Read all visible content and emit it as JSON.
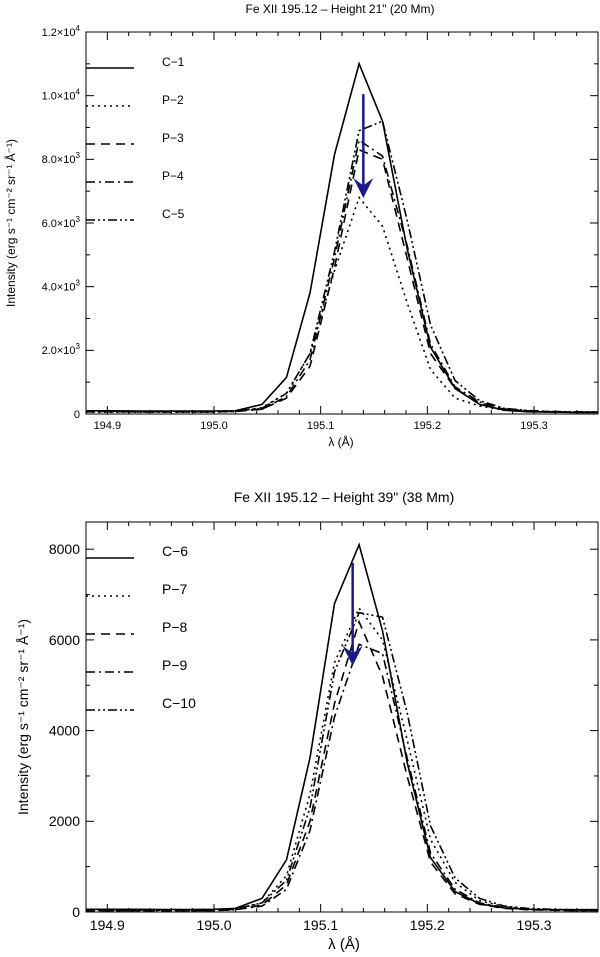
{
  "chart_data": [
    {
      "type": "line",
      "title": "Fe XII 195.12 – Height 21\" (20 Mm)",
      "xlabel": "λ (Å)",
      "ylabel": "Intensity (erg s⁻¹ cm⁻² sr⁻¹ Å⁻¹)",
      "xlim": [
        194.88,
        195.36
      ],
      "ylim": [
        0,
        12000
      ],
      "xticks": [
        194.9,
        195.0,
        195.1,
        195.2,
        195.3
      ],
      "xtick_labels": [
        "194.9",
        "195.0",
        "195.1",
        "195.2",
        "195.3"
      ],
      "yticks": [
        0,
        2000,
        4000,
        6000,
        8000,
        10000,
        12000
      ],
      "ytick_labels": [
        {
          "mantissa": "0",
          "exp": ""
        },
        {
          "mantissa": "2.0×10",
          "exp": "3"
        },
        {
          "mantissa": "4.0×10",
          "exp": "3"
        },
        {
          "mantissa": "6.0×10",
          "exp": "3"
        },
        {
          "mantissa": "8.0×10",
          "exp": "3"
        },
        {
          "mantissa": "1.0×10",
          "exp": "4"
        },
        {
          "mantissa": "1.2×10",
          "exp": "4"
        }
      ],
      "arrow": {
        "x": 195.14,
        "y_from": 10050,
        "y_to": 7100,
        "color": "#1a1a8c"
      },
      "series": [
        {
          "name": "C−1",
          "dash": "solid",
          "x": [
            194.88,
            194.9,
            194.93,
            194.95,
            194.98,
            195.0,
            195.02,
            195.045,
            195.068,
            195.09,
            195.113,
            195.136,
            195.158,
            195.181,
            195.203,
            195.226,
            195.249,
            195.272,
            195.294,
            195.317,
            195.34,
            195.36
          ],
          "y": [
            100,
            100,
            95,
            90,
            90,
            95,
            100,
            300,
            1150,
            3800,
            8150,
            11000,
            9200,
            5200,
            2100,
            800,
            300,
            120,
            70,
            60,
            50,
            50
          ]
        },
        {
          "name": "P−2",
          "dash": "dot",
          "x": [
            194.88,
            194.9,
            194.93,
            194.95,
            194.98,
            195.0,
            195.02,
            195.045,
            195.068,
            195.09,
            195.113,
            195.136,
            195.158,
            195.181,
            195.203,
            195.226,
            195.249,
            195.272,
            195.294,
            195.317,
            195.34,
            195.36
          ],
          "y": [
            60,
            60,
            60,
            60,
            60,
            60,
            80,
            200,
            650,
            1900,
            4500,
            6800,
            5900,
            3500,
            1400,
            500,
            250,
            120,
            80,
            60,
            50,
            50
          ]
        },
        {
          "name": "P−3",
          "dash": "dash",
          "x": [
            194.88,
            194.9,
            194.93,
            194.95,
            194.98,
            195.0,
            195.02,
            195.045,
            195.068,
            195.09,
            195.113,
            195.136,
            195.158,
            195.181,
            195.203,
            195.226,
            195.249,
            195.272,
            195.294,
            195.317,
            195.34,
            195.36
          ],
          "y": [
            80,
            80,
            70,
            70,
            70,
            70,
            90,
            150,
            500,
            1500,
            4600,
            8300,
            8000,
            4900,
            1900,
            800,
            350,
            150,
            90,
            70,
            60,
            60
          ]
        },
        {
          "name": "P−4",
          "dash": "dashdot",
          "x": [
            194.88,
            194.9,
            194.93,
            194.95,
            194.98,
            195.0,
            195.02,
            195.045,
            195.068,
            195.09,
            195.113,
            195.136,
            195.158,
            195.181,
            195.203,
            195.226,
            195.249,
            195.272,
            195.294,
            195.317,
            195.34,
            195.36
          ],
          "y": [
            70,
            70,
            65,
            65,
            65,
            65,
            80,
            150,
            550,
            1700,
            4900,
            8600,
            8100,
            5300,
            2200,
            850,
            380,
            160,
            100,
            70,
            60,
            60
          ]
        },
        {
          "name": "C−5",
          "dash": "dashdotdot",
          "x": [
            194.88,
            194.9,
            194.93,
            194.95,
            194.98,
            195.0,
            195.02,
            195.045,
            195.068,
            195.09,
            195.113,
            195.136,
            195.158,
            195.181,
            195.203,
            195.226,
            195.249,
            195.272,
            195.294,
            195.317,
            195.34,
            195.36
          ],
          "y": [
            90,
            90,
            80,
            80,
            80,
            80,
            100,
            180,
            650,
            1900,
            5100,
            8900,
            9200,
            6100,
            2800,
            1050,
            420,
            180,
            110,
            80,
            70,
            60
          ]
        }
      ]
    },
    {
      "type": "line",
      "title": "Fe XII 195.12 – Height 39\" (38 Mm)",
      "xlabel": "λ (Å)",
      "ylabel": "Intensity (erg s⁻¹ cm⁻² sr⁻¹ Å⁻¹)",
      "xlim": [
        194.88,
        195.36
      ],
      "ylim": [
        0,
        8600
      ],
      "xticks": [
        194.9,
        195.0,
        195.1,
        195.2,
        195.3
      ],
      "xtick_labels": [
        "194.9",
        "195.0",
        "195.1",
        "195.2",
        "195.3"
      ],
      "yticks": [
        0,
        2000,
        4000,
        6000,
        8000
      ],
      "ytick_labels": [
        {
          "mantissa": "0",
          "exp": ""
        },
        {
          "mantissa": "2000",
          "exp": ""
        },
        {
          "mantissa": "4000",
          "exp": ""
        },
        {
          "mantissa": "6000",
          "exp": ""
        },
        {
          "mantissa": "8000",
          "exp": ""
        }
      ],
      "arrow": {
        "x": 195.13,
        "y_from": 7700,
        "y_to": 5650,
        "color": "#1a1a8c"
      },
      "series": [
        {
          "name": "C−6",
          "dash": "solid",
          "x": [
            194.88,
            194.9,
            194.93,
            194.95,
            194.98,
            195.0,
            195.02,
            195.045,
            195.068,
            195.09,
            195.113,
            195.136,
            195.158,
            195.181,
            195.203,
            195.226,
            195.249,
            195.272,
            195.294,
            195.317,
            195.34,
            195.36
          ],
          "y": [
            60,
            60,
            60,
            55,
            55,
            60,
            80,
            300,
            1150,
            3400,
            6800,
            8100,
            6200,
            3300,
            1200,
            450,
            180,
            90,
            60,
            50,
            50,
            50
          ]
        },
        {
          "name": "P−7",
          "dash": "dot",
          "x": [
            194.88,
            194.9,
            194.93,
            194.95,
            194.98,
            195.0,
            195.02,
            195.045,
            195.068,
            195.09,
            195.113,
            195.136,
            195.158,
            195.181,
            195.203,
            195.226,
            195.249,
            195.272,
            195.294,
            195.317,
            195.34,
            195.36
          ],
          "y": [
            40,
            40,
            40,
            40,
            40,
            40,
            60,
            200,
            800,
            2600,
            5500,
            6700,
            6000,
            3800,
            1600,
            650,
            250,
            120,
            70,
            50,
            40,
            40
          ]
        },
        {
          "name": "P−8",
          "dash": "dash",
          "x": [
            194.88,
            194.9,
            194.93,
            194.95,
            194.98,
            195.0,
            195.02,
            195.045,
            195.068,
            195.09,
            195.113,
            195.136,
            195.158,
            195.181,
            195.203,
            195.226,
            195.249,
            195.272,
            195.294,
            195.317,
            195.34,
            195.36
          ],
          "y": [
            30,
            30,
            30,
            30,
            30,
            30,
            50,
            150,
            600,
            2000,
            4600,
            6400,
            5200,
            3000,
            1100,
            400,
            170,
            80,
            50,
            40,
            30,
            30
          ]
        },
        {
          "name": "P−9",
          "dash": "dashdot",
          "x": [
            194.88,
            194.9,
            194.93,
            194.95,
            194.98,
            195.0,
            195.02,
            195.045,
            195.068,
            195.09,
            195.113,
            195.136,
            195.158,
            195.181,
            195.203,
            195.226,
            195.249,
            195.272,
            195.294,
            195.317,
            195.34,
            195.36
          ],
          "y": [
            30,
            30,
            30,
            30,
            30,
            30,
            50,
            130,
            500,
            1800,
            4300,
            5900,
            5700,
            3400,
            1300,
            500,
            200,
            100,
            60,
            40,
            30,
            30
          ]
        },
        {
          "name": "C−10",
          "dash": "dashdotdot",
          "x": [
            194.88,
            194.9,
            194.93,
            194.95,
            194.98,
            195.0,
            195.02,
            195.045,
            195.068,
            195.09,
            195.113,
            195.136,
            195.158,
            195.181,
            195.203,
            195.226,
            195.249,
            195.272,
            195.294,
            195.317,
            195.34,
            195.36
          ],
          "y": [
            50,
            50,
            50,
            50,
            50,
            50,
            70,
            200,
            700,
            2300,
            5300,
            6600,
            6500,
            4400,
            1900,
            750,
            300,
            130,
            80,
            60,
            50,
            50
          ]
        }
      ]
    }
  ]
}
